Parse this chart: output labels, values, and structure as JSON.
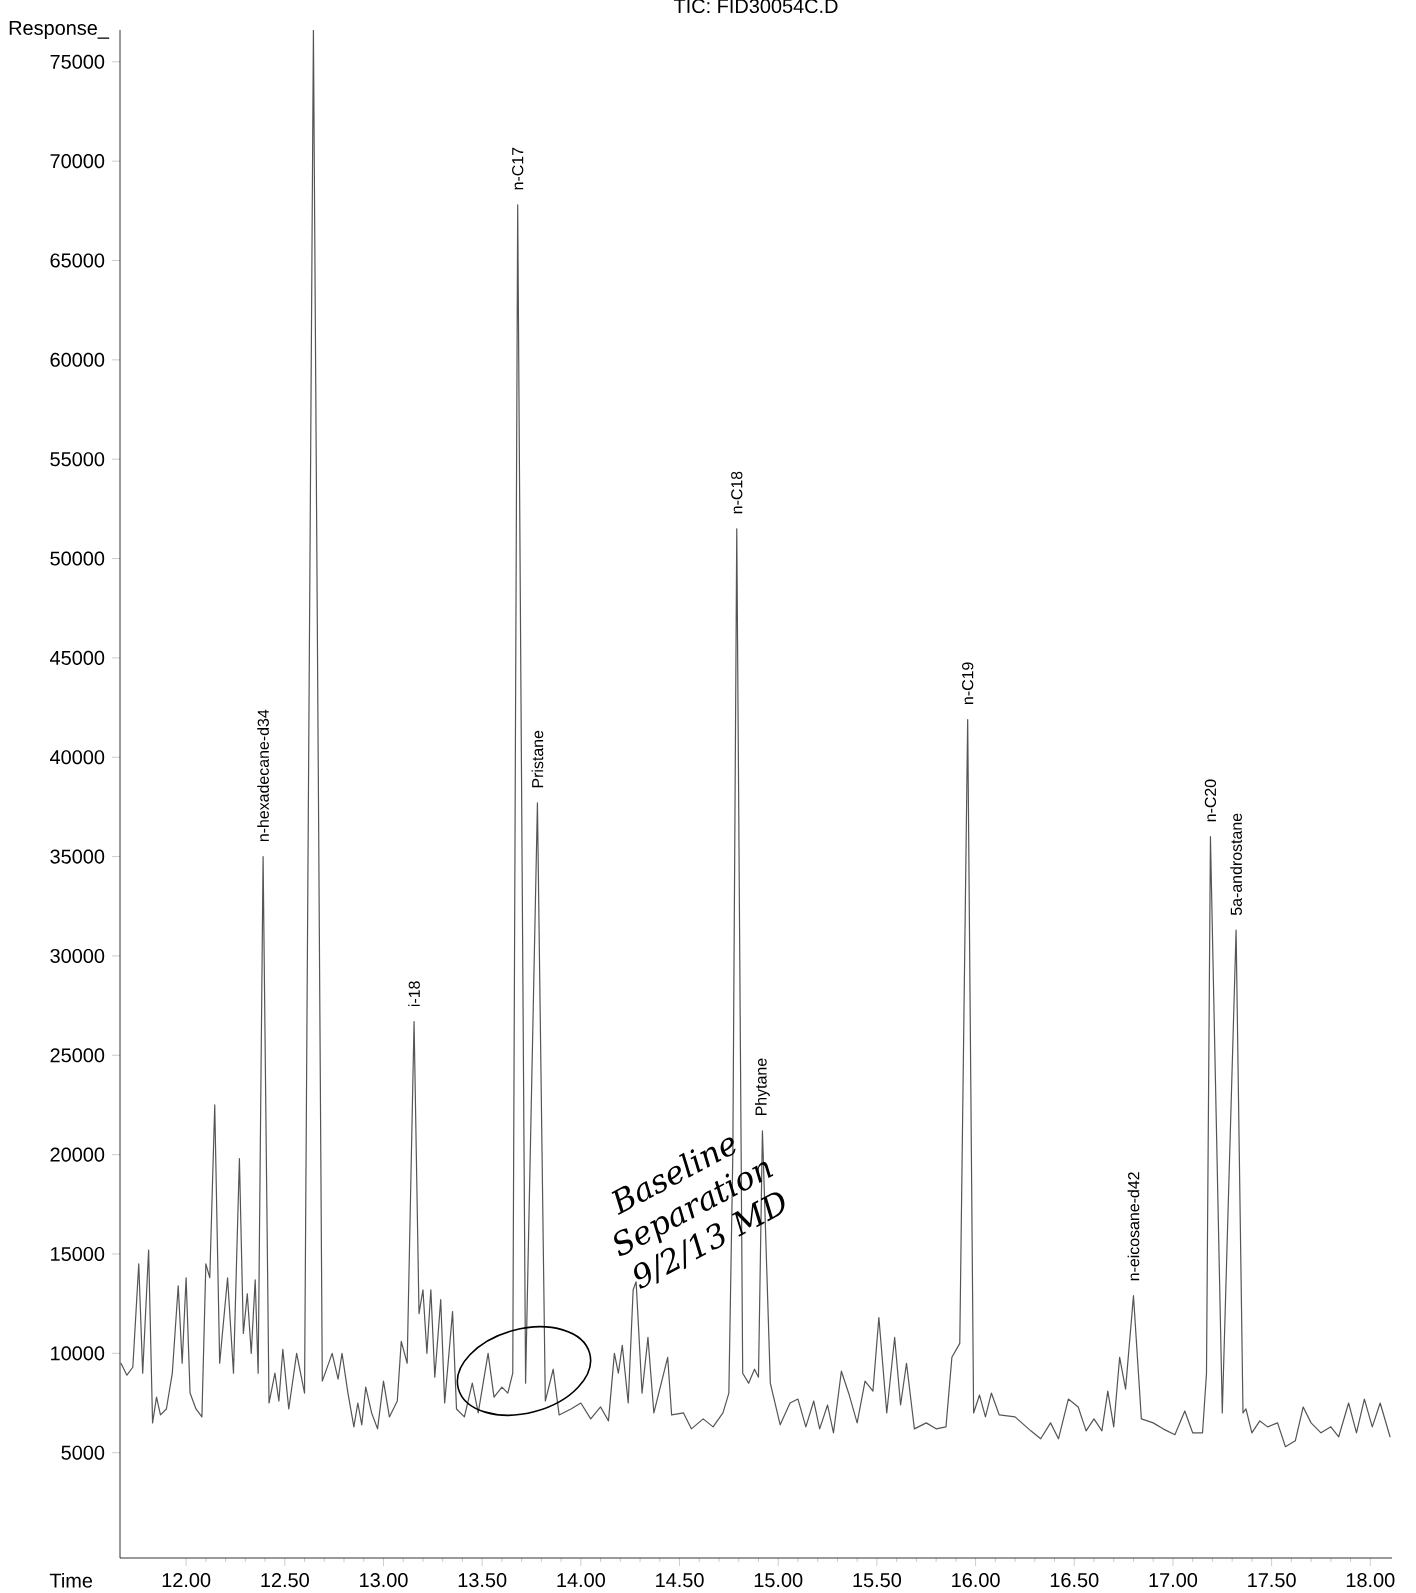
{
  "chart_data": {
    "type": "line",
    "title": "TIC: FID30054C.D",
    "xlabel": "Time",
    "ylabel": "Response_",
    "xlim": [
      11.665,
      18.11
    ],
    "ylim": [
      -300,
      76600
    ],
    "xticks": [
      {
        "value": 12,
        "label": "12.00"
      },
      {
        "value": 12.5,
        "label": "12.50"
      },
      {
        "value": 13,
        "label": "13.00"
      },
      {
        "value": 13.5,
        "label": "13.50"
      },
      {
        "value": 14,
        "label": "14.00"
      },
      {
        "value": 14.5,
        "label": "14.50"
      },
      {
        "value": 15,
        "label": "15.00"
      },
      {
        "value": 15.5,
        "label": "15.50"
      },
      {
        "value": 16,
        "label": "16.00"
      },
      {
        "value": 16.5,
        "label": "16.50"
      },
      {
        "value": 17,
        "label": "17.00"
      },
      {
        "value": 17.5,
        "label": "17.50"
      },
      {
        "value": 18,
        "label": "18.00"
      }
    ],
    "yticks": [
      5000,
      10000,
      15000,
      20000,
      25000,
      30000,
      35000,
      40000,
      45000,
      50000,
      55000,
      60000,
      65000,
      70000,
      75000
    ],
    "series": [
      {
        "color": "#555555",
        "x": [
          11.67,
          11.7,
          11.73,
          11.76,
          11.78,
          11.81,
          11.83,
          11.85,
          11.87,
          11.9,
          11.93,
          11.96,
          11.98,
          12.0,
          12.02,
          12.05,
          12.08,
          12.1,
          12.12,
          12.145,
          12.17,
          12.21,
          12.24,
          12.27,
          12.29,
          12.31,
          12.33,
          12.35,
          12.365,
          12.39,
          12.42,
          12.45,
          12.47,
          12.49,
          12.52,
          12.56,
          12.6,
          12.645,
          12.69,
          12.74,
          12.77,
          12.79,
          12.82,
          12.85,
          12.87,
          12.89,
          12.91,
          12.94,
          12.97,
          13.0,
          13.03,
          13.07,
          13.09,
          13.12,
          13.155,
          13.18,
          13.2,
          13.22,
          13.24,
          13.26,
          13.29,
          13.31,
          13.35,
          13.37,
          13.41,
          13.45,
          13.48,
          13.53,
          13.56,
          13.6,
          13.63,
          13.655,
          13.68,
          13.72,
          13.78,
          13.82,
          13.86,
          13.89,
          13.95,
          14.0,
          14.05,
          14.1,
          14.14,
          14.17,
          14.19,
          14.21,
          14.24,
          14.265,
          14.28,
          14.31,
          14.34,
          14.37,
          14.44,
          14.46,
          14.52,
          14.56,
          14.62,
          14.67,
          14.72,
          14.75,
          14.77,
          14.79,
          14.82,
          14.85,
          14.88,
          14.9,
          14.92,
          14.96,
          15.01,
          15.06,
          15.1,
          15.14,
          15.18,
          15.21,
          15.25,
          15.28,
          15.32,
          15.36,
          15.4,
          15.44,
          15.48,
          15.51,
          15.55,
          15.59,
          15.62,
          15.65,
          15.69,
          15.75,
          15.8,
          15.85,
          15.88,
          15.92,
          15.96,
          15.99,
          16.02,
          16.05,
          16.08,
          16.12,
          16.2,
          16.28,
          16.33,
          16.38,
          16.42,
          16.47,
          16.52,
          16.56,
          16.6,
          16.64,
          16.67,
          16.7,
          16.73,
          16.76,
          16.8,
          16.84,
          16.9,
          16.95,
          17.01,
          17.06,
          17.1,
          17.15,
          17.17,
          17.19,
          17.25,
          17.32,
          17.355,
          17.37,
          17.4,
          17.44,
          17.48,
          17.53,
          17.57,
          17.62,
          17.66,
          17.7,
          17.75,
          17.8,
          17.84,
          17.89,
          17.93,
          17.97,
          18.01,
          18.05,
          18.1
        ],
        "values": [
          9500,
          8900,
          9300,
          14500,
          9000,
          15200,
          6500,
          7800,
          6900,
          7200,
          9000,
          13400,
          9500,
          13800,
          8000,
          7200,
          6800,
          14500,
          13800,
          22500,
          9500,
          13800,
          9000,
          19800,
          11000,
          13000,
          10000,
          13700,
          9000,
          35000,
          7500,
          9000,
          7600,
          10200,
          7200,
          10000,
          8000,
          76600,
          8600,
          10000,
          8700,
          10000,
          8000,
          6300,
          7500,
          6400,
          8300,
          7000,
          6200,
          8600,
          6800,
          7600,
          10600,
          9500,
          26700,
          12000,
          13200,
          10000,
          13200,
          8800,
          12700,
          7500,
          12100,
          7200,
          6800,
          8500,
          7000,
          10000,
          7800,
          8300,
          8000,
          9000,
          67800,
          8500,
          37700,
          7600,
          9200,
          6900,
          7200,
          7500,
          6700,
          7300,
          6600,
          10000,
          9000,
          10400,
          7500,
          13200,
          13600,
          8000,
          10800,
          7000,
          9800,
          6900,
          7000,
          6200,
          6700,
          6300,
          7000,
          8000,
          20000,
          51500,
          9000,
          8500,
          9200,
          8800,
          21200,
          8500,
          6400,
          7500,
          7700,
          6300,
          7600,
          6200,
          7400,
          6000,
          9100,
          7900,
          6500,
          8600,
          8100,
          11800,
          7000,
          10800,
          7400,
          9500,
          6200,
          6500,
          6200,
          6300,
          9800,
          10500,
          41900,
          7000,
          7900,
          6800,
          8000,
          6900,
          6800,
          6100,
          5700,
          6500,
          5700,
          7700,
          7300,
          6100,
          6700,
          6100,
          8100,
          6300,
          9800,
          8200,
          12900,
          6700,
          6500,
          6200,
          5900,
          7100,
          6000,
          6000,
          9000,
          36000,
          7000,
          31300,
          7000,
          7200,
          6000,
          6600,
          6300,
          6500,
          5300,
          5600,
          7300,
          6500,
          6000,
          6300,
          5800,
          7500,
          6000,
          7700,
          6300,
          7500,
          5800
        ]
      }
    ],
    "annotations": [
      {
        "text": "n-hexadecane-d34",
        "x": 12.39,
        "y": 35000
      },
      {
        "text": "i-18",
        "x": 13.155,
        "y": 26700
      },
      {
        "text": "n-C17",
        "x": 13.68,
        "y": 67800
      },
      {
        "text": "Pristane",
        "x": 13.78,
        "y": 37700
      },
      {
        "text": "n-C18",
        "x": 14.79,
        "y": 51500
      },
      {
        "text": "Phytane",
        "x": 14.92,
        "y": 21200
      },
      {
        "text": "n-C19",
        "x": 15.96,
        "y": 41900
      },
      {
        "text": "n-eicosane-d42",
        "x": 16.8,
        "y": 12900
      },
      {
        "text": "n-C20",
        "x": 17.19,
        "y": 36000
      },
      {
        "text": "5a-androstane",
        "x": 17.32,
        "y": 31300
      },
      "Baseline Separation 9/2/13 MD"
    ]
  }
}
